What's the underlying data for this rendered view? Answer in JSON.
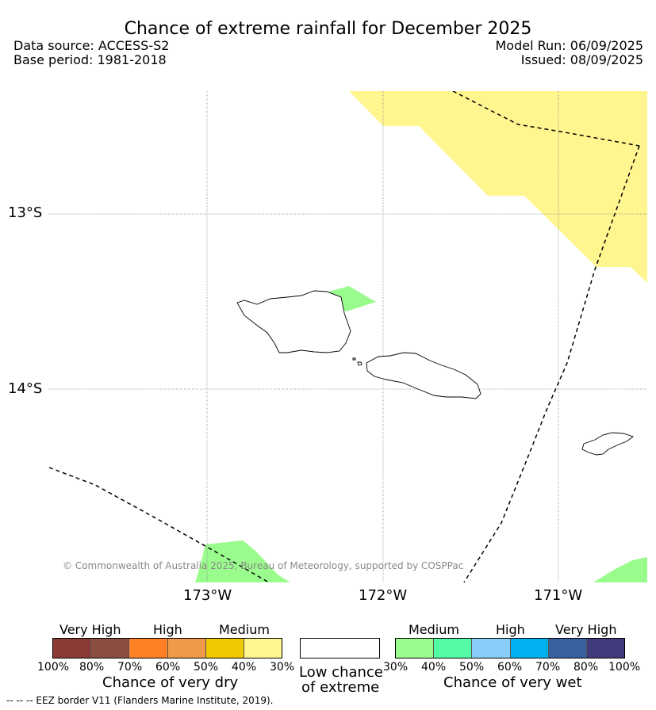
{
  "header": {
    "title": "Chance of extreme rainfall for December 2025",
    "data_source": "Data source: ACCESS-S2",
    "base_period": "Base period: 1981-2018",
    "model_run": "Model Run: 06/09/2025",
    "issued": "Issued: 08/09/2025"
  },
  "map": {
    "lat_labels": [
      "13°S",
      "14°S"
    ],
    "lon_labels": [
      "173°W",
      "172°W",
      "171°W"
    ],
    "copyright": "© Commonwealth of Australia 2025, Bureau of Meteorology, supported by COSPPac",
    "colors": {
      "dry_40_30": "#fff68f",
      "wet_30_40": "#9bfc8e",
      "land_outline": "#000000",
      "eez_border": "#000000",
      "gridline": "#808080"
    }
  },
  "legend": {
    "dry": {
      "categories": [
        "Very High",
        "High",
        "Medium"
      ],
      "ticks": [
        "100%",
        "80%",
        "70%",
        "60%",
        "50%",
        "40%",
        "30%"
      ],
      "caption": "Chance of very dry",
      "colors": [
        "#8b3a35",
        "#8c4e3e",
        "#ff8025",
        "#ef9a48",
        "#f0c800",
        "#fff68f"
      ]
    },
    "low": {
      "caption_line1": "Low chance",
      "caption_line2": "of extreme",
      "color": "#ffffff"
    },
    "wet": {
      "categories": [
        "Medium",
        "High",
        "Very High"
      ],
      "ticks": [
        "30%",
        "40%",
        "50%",
        "60%",
        "70%",
        "80%",
        "100%"
      ],
      "caption": "Chance of very wet",
      "colors": [
        "#9bfc8e",
        "#52fba4",
        "#88cdf8",
        "#00b0f0",
        "#37629f",
        "#403b7a"
      ]
    }
  },
  "footnote": "--  --  -- EEZ border V11 (Flanders Marine Institute, 2019)."
}
